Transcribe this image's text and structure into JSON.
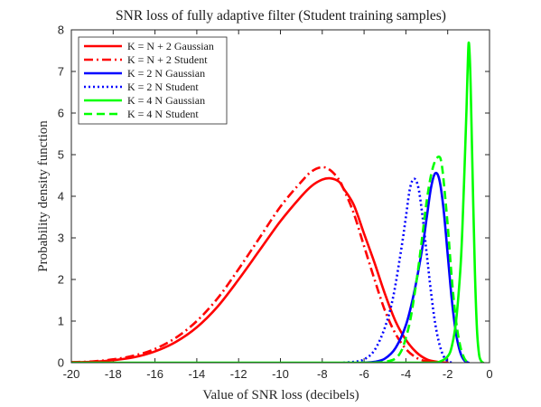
{
  "chart_data": {
    "type": "line",
    "title": "SNR loss of fully adaptive filter (Student training samples)",
    "xlabel": "Value of SNR loss (decibels)",
    "ylabel": "Probability density function",
    "xlim": [
      -20,
      0
    ],
    "ylim": [
      0,
      8
    ],
    "xticks": [
      -20,
      -18,
      -16,
      -14,
      -12,
      -10,
      -8,
      -6,
      -4,
      -2,
      0
    ],
    "yticks": [
      0,
      1,
      2,
      3,
      4,
      5,
      6,
      7,
      8
    ],
    "xtick_labels": [
      "-20",
      "-18",
      "-16",
      "-14",
      "-12",
      "-10",
      "-8",
      "-6",
      "-4",
      "-2",
      "0"
    ],
    "ytick_labels": [
      "0",
      "1",
      "2",
      "3",
      "4",
      "5",
      "6",
      "7",
      "8"
    ],
    "grid": false,
    "legend_position": "top-left",
    "series": [
      {
        "name": "K = N + 2 Gaussian",
        "color": "#ff0000",
        "style": "solid",
        "x": [
          -20,
          -19,
          -18,
          -17,
          -16,
          -15,
          -14,
          -13,
          -12,
          -11,
          -10,
          -9,
          -8.5,
          -8,
          -7.6,
          -7.2,
          -7,
          -6.5,
          -6,
          -5.5,
          -5,
          -4.5,
          -4,
          -3.5,
          -3,
          -2.5,
          -2
        ],
        "y": [
          0.01,
          0.02,
          0.06,
          0.13,
          0.27,
          0.5,
          0.85,
          1.35,
          2.0,
          2.7,
          3.4,
          4.0,
          4.25,
          4.4,
          4.43,
          4.35,
          4.2,
          3.8,
          3.1,
          2.4,
          1.65,
          1.0,
          0.55,
          0.25,
          0.08,
          0.02,
          0
        ]
      },
      {
        "name": "K = N + 2 Student",
        "color": "#ff0000",
        "style": "dashdot",
        "x": [
          -20,
          -19,
          -18,
          -17,
          -16,
          -15,
          -14,
          -13,
          -12,
          -11,
          -10,
          -9,
          -8.5,
          -8,
          -7.6,
          -7.2,
          -7,
          -6.5,
          -6,
          -5.5,
          -5,
          -4.5,
          -4,
          -3.5,
          -3,
          -2.5,
          -2
        ],
        "y": [
          0.01,
          0.03,
          0.08,
          0.17,
          0.33,
          0.6,
          1.0,
          1.55,
          2.25,
          3.0,
          3.75,
          4.35,
          4.6,
          4.7,
          4.62,
          4.4,
          4.2,
          3.6,
          2.8,
          2.0,
          1.25,
          0.7,
          0.33,
          0.12,
          0.03,
          0.01,
          0
        ]
      },
      {
        "name": "K = 2 N Gaussian",
        "color": "#0000ff",
        "style": "solid",
        "x": [
          -6,
          -5.5,
          -5,
          -4.5,
          -4,
          -3.6,
          -3.2,
          -3,
          -2.8,
          -2.6,
          -2.4,
          -2.2,
          -2,
          -1.8,
          -1.6,
          -1.4,
          -1.2,
          -1
        ],
        "y": [
          0,
          0.02,
          0.1,
          0.35,
          0.9,
          1.7,
          2.8,
          3.5,
          4.2,
          4.55,
          4.4,
          3.7,
          2.6,
          1.5,
          0.7,
          0.25,
          0.05,
          0
        ]
      },
      {
        "name": "K = 2 N Student",
        "color": "#0000ff",
        "style": "dotted",
        "x": [
          -7,
          -6.5,
          -6,
          -5.5,
          -5,
          -4.6,
          -4.2,
          -4,
          -3.8,
          -3.6,
          -3.4,
          -3.2,
          -3,
          -2.8,
          -2.6,
          -2.4,
          -2.2,
          -2,
          -1.8
        ],
        "y": [
          0,
          0.02,
          0.08,
          0.3,
          0.85,
          1.6,
          2.8,
          3.5,
          4.2,
          4.42,
          4.2,
          3.5,
          2.6,
          1.7,
          0.95,
          0.45,
          0.16,
          0.04,
          0
        ]
      },
      {
        "name": "K = 4 N Gaussian",
        "color": "#00ff00",
        "style": "solid",
        "x": [
          -20,
          -4,
          -2.8,
          -2.4,
          -2,
          -1.8,
          -1.6,
          -1.4,
          -1.3,
          -1.2,
          -1.1,
          -1.05,
          -1.0,
          -0.95,
          -0.9,
          -0.8,
          -0.7,
          -0.6,
          -0.5,
          -0.4,
          -0.3
        ],
        "y": [
          0,
          0,
          0,
          0.02,
          0.15,
          0.4,
          1.0,
          2.2,
          3.2,
          4.6,
          6.1,
          7.0,
          7.68,
          7.4,
          6.6,
          4.3,
          2.2,
          0.8,
          0.2,
          0.04,
          0
        ]
      },
      {
        "name": "K = 4 N Student",
        "color": "#00ff00",
        "style": "dashed",
        "x": [
          -5.5,
          -5,
          -4.5,
          -4.2,
          -4,
          -3.8,
          -3.6,
          -3.4,
          -3.2,
          -3,
          -2.8,
          -2.6,
          -2.4,
          -2.3,
          -2.2,
          -2,
          -1.8,
          -1.6,
          -1.4,
          -1.2,
          -1
        ],
        "y": [
          0,
          0.02,
          0.1,
          0.3,
          0.6,
          1.0,
          1.6,
          2.3,
          3.1,
          3.9,
          4.5,
          4.85,
          4.95,
          4.8,
          4.4,
          3.3,
          2.0,
          1.0,
          0.4,
          0.1,
          0
        ]
      }
    ]
  }
}
